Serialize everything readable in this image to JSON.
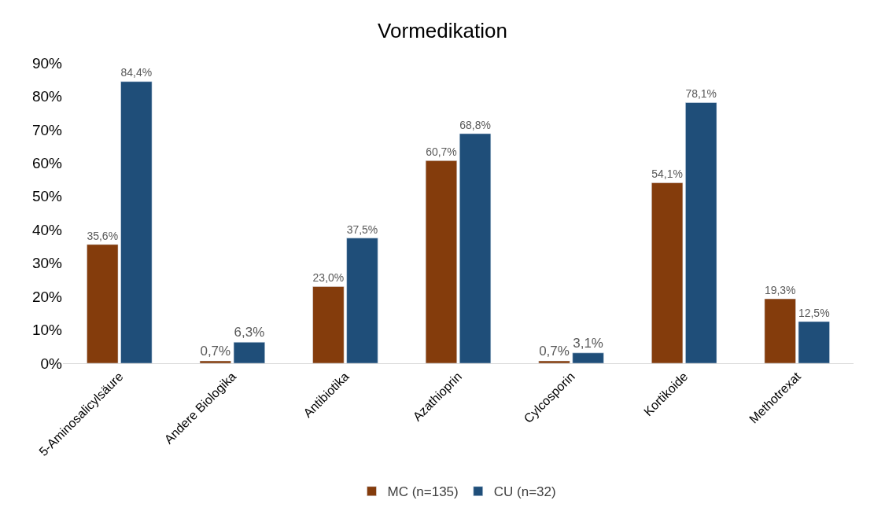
{
  "chart_data": {
    "type": "bar",
    "title": "Vormedikation",
    "categories": [
      "5-Aminosalicylsäure",
      "Andere Biologika",
      "Antibiotika",
      "Azathioprin",
      "Cylcosporin",
      "Kortikoide",
      "Methotrexat"
    ],
    "series": [
      {
        "name": "MC (n=135)",
        "color": "#843c0c",
        "values": [
          35.6,
          0.7,
          23.0,
          60.7,
          0.7,
          54.1,
          19.3
        ],
        "value_labels": [
          "35,6%",
          "0,7%",
          "23,0%",
          "60,7%",
          "0,7%",
          "54,1%",
          "19,3%"
        ]
      },
      {
        "name": "CU (n=32)",
        "color": "#1f4e79",
        "values": [
          84.4,
          6.3,
          37.5,
          68.8,
          3.1,
          78.1,
          12.5
        ],
        "value_labels": [
          "84,4%",
          "6,3%",
          "37,5%",
          "68,8%",
          "3,1%",
          "78,1%",
          "12,5%"
        ]
      }
    ],
    "ylim": [
      0,
      90
    ],
    "yticks": [
      {
        "value": 0,
        "label": "0%"
      },
      {
        "value": 10,
        "label": "10%"
      },
      {
        "value": 20,
        "label": "20%"
      },
      {
        "value": 30,
        "label": "30%"
      },
      {
        "value": 40,
        "label": "40%"
      },
      {
        "value": 50,
        "label": "50%"
      },
      {
        "value": 60,
        "label": "60%"
      },
      {
        "value": 70,
        "label": "70%"
      },
      {
        "value": 80,
        "label": "80%"
      },
      {
        "value": 90,
        "label": "90%"
      }
    ],
    "grid": false,
    "legend": "bottom"
  }
}
